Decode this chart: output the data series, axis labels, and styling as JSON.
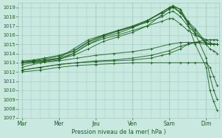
{
  "bg_color": "#c8e8e0",
  "grid_color": "#a0c8c0",
  "line_color": "#1a5c1a",
  "xlabel_text": "Pression niveau de la mer( hPa )",
  "ylim": [
    1007,
    1019.5
  ],
  "yticks": [
    1007,
    1008,
    1009,
    1010,
    1011,
    1012,
    1013,
    1014,
    1015,
    1016,
    1017,
    1018,
    1019
  ],
  "xtick_labels": [
    "Mar",
    "Mer",
    "Jeu",
    "Ven",
    "Sam",
    "Dim"
  ],
  "xlim": [
    -0.1,
    5.35
  ],
  "lines": [
    {
      "pts": [
        [
          0,
          1013.0
        ],
        [
          0.3,
          1013.2
        ],
        [
          0.6,
          1013.3
        ],
        [
          1.0,
          1013.5
        ],
        [
          1.4,
          1014.0
        ],
        [
          1.8,
          1015.0
        ],
        [
          2.2,
          1015.8
        ],
        [
          2.6,
          1016.2
        ],
        [
          3.0,
          1016.8
        ],
        [
          3.4,
          1017.5
        ],
        [
          3.8,
          1018.5
        ],
        [
          4.0,
          1019.0
        ],
        [
          4.1,
          1019.2
        ],
        [
          4.3,
          1018.8
        ],
        [
          4.5,
          1017.2
        ],
        [
          4.7,
          1015.0
        ],
        [
          5.0,
          1012.5
        ],
        [
          5.1,
          1010.0
        ],
        [
          5.2,
          1008.8
        ],
        [
          5.3,
          1007.8
        ]
      ]
    },
    {
      "pts": [
        [
          0,
          1013.0
        ],
        [
          0.3,
          1013.1
        ],
        [
          0.6,
          1013.2
        ],
        [
          1.0,
          1013.4
        ],
        [
          1.4,
          1013.8
        ],
        [
          1.8,
          1014.5
        ],
        [
          2.2,
          1015.3
        ],
        [
          2.6,
          1015.8
        ],
        [
          3.0,
          1016.3
        ],
        [
          3.4,
          1017.0
        ],
        [
          3.8,
          1018.2
        ],
        [
          4.0,
          1018.9
        ],
        [
          4.1,
          1019.1
        ],
        [
          4.3,
          1018.8
        ],
        [
          4.5,
          1017.5
        ],
        [
          4.7,
          1016.2
        ],
        [
          5.0,
          1013.5
        ],
        [
          5.1,
          1011.5
        ],
        [
          5.2,
          1010.0
        ],
        [
          5.3,
          1009.0
        ]
      ]
    },
    {
      "pts": [
        [
          0,
          1013.1
        ],
        [
          0.3,
          1013.2
        ],
        [
          0.6,
          1013.4
        ],
        [
          1.0,
          1013.7
        ],
        [
          1.4,
          1014.2
        ],
        [
          1.8,
          1015.2
        ],
        [
          2.2,
          1015.9
        ],
        [
          2.6,
          1016.4
        ],
        [
          3.0,
          1016.9
        ],
        [
          3.4,
          1017.6
        ],
        [
          3.8,
          1018.5
        ],
        [
          4.0,
          1019.0
        ],
        [
          4.1,
          1019.1
        ],
        [
          4.3,
          1018.5
        ],
        [
          4.5,
          1017.3
        ],
        [
          4.7,
          1016.5
        ],
        [
          5.0,
          1015.0
        ],
        [
          5.1,
          1014.5
        ],
        [
          5.2,
          1014.3
        ],
        [
          5.3,
          1014.0
        ]
      ]
    },
    {
      "pts": [
        [
          0,
          1013.2
        ],
        [
          0.3,
          1013.3
        ],
        [
          0.6,
          1013.5
        ],
        [
          1.0,
          1013.8
        ],
        [
          1.4,
          1014.3
        ],
        [
          1.8,
          1015.3
        ],
        [
          2.2,
          1016.0
        ],
        [
          2.6,
          1016.5
        ],
        [
          3.0,
          1017.0
        ],
        [
          3.4,
          1017.6
        ],
        [
          3.8,
          1018.4
        ],
        [
          4.0,
          1018.8
        ],
        [
          4.1,
          1019.0
        ],
        [
          4.3,
          1018.4
        ],
        [
          4.5,
          1017.5
        ],
        [
          4.7,
          1016.7
        ],
        [
          5.0,
          1015.2
        ],
        [
          5.1,
          1015.0
        ],
        [
          5.2,
          1015.0
        ],
        [
          5.3,
          1015.0
        ]
      ]
    },
    {
      "pts": [
        [
          0,
          1013.0
        ],
        [
          0.3,
          1013.1
        ],
        [
          0.6,
          1013.2
        ],
        [
          1.0,
          1013.5
        ],
        [
          1.4,
          1014.5
        ],
        [
          1.8,
          1015.5
        ],
        [
          2.2,
          1016.0
        ],
        [
          2.6,
          1016.5
        ],
        [
          3.0,
          1016.9
        ],
        [
          3.4,
          1017.4
        ],
        [
          3.8,
          1018.0
        ],
        [
          4.0,
          1018.5
        ],
        [
          4.1,
          1018.6
        ],
        [
          4.3,
          1018.0
        ],
        [
          4.5,
          1017.0
        ],
        [
          4.7,
          1016.2
        ],
        [
          5.0,
          1015.2
        ],
        [
          5.1,
          1015.0
        ],
        [
          5.2,
          1015.0
        ],
        [
          5.3,
          1015.0
        ]
      ]
    },
    {
      "pts": [
        [
          0,
          1012.8
        ],
        [
          0.3,
          1013.0
        ],
        [
          0.6,
          1013.1
        ],
        [
          1.0,
          1013.3
        ],
        [
          1.4,
          1014.0
        ],
        [
          1.8,
          1015.0
        ],
        [
          2.2,
          1015.6
        ],
        [
          2.6,
          1016.0
        ],
        [
          3.0,
          1016.5
        ],
        [
          3.4,
          1017.0
        ],
        [
          3.8,
          1017.5
        ],
        [
          4.0,
          1017.8
        ],
        [
          4.1,
          1017.8
        ],
        [
          4.3,
          1017.2
        ],
        [
          4.5,
          1016.5
        ],
        [
          4.7,
          1016.0
        ],
        [
          5.0,
          1015.5
        ],
        [
          5.1,
          1015.2
        ],
        [
          5.2,
          1015.0
        ],
        [
          5.3,
          1015.0
        ]
      ]
    },
    {
      "pts": [
        [
          0,
          1012.5
        ],
        [
          0.5,
          1013.0
        ],
        [
          1.0,
          1013.2
        ],
        [
          1.5,
          1013.5
        ],
        [
          2.0,
          1013.8
        ],
        [
          2.5,
          1014.0
        ],
        [
          3.0,
          1014.2
        ],
        [
          3.5,
          1014.5
        ],
        [
          4.0,
          1015.0
        ],
        [
          4.3,
          1015.2
        ],
        [
          4.5,
          1015.2
        ],
        [
          4.7,
          1015.2
        ],
        [
          5.0,
          1015.0
        ],
        [
          5.1,
          1015.0
        ],
        [
          5.2,
          1015.0
        ],
        [
          5.3,
          1015.0
        ]
      ]
    },
    {
      "pts": [
        [
          0,
          1012.2
        ],
        [
          0.5,
          1012.5
        ],
        [
          1.0,
          1012.8
        ],
        [
          1.5,
          1013.0
        ],
        [
          2.0,
          1013.2
        ],
        [
          2.5,
          1013.3
        ],
        [
          3.0,
          1013.5
        ],
        [
          3.5,
          1013.8
        ],
        [
          4.0,
          1014.3
        ],
        [
          4.3,
          1014.8
        ],
        [
          4.5,
          1015.0
        ],
        [
          4.7,
          1015.2
        ],
        [
          5.0,
          1015.2
        ],
        [
          5.1,
          1015.0
        ],
        [
          5.2,
          1015.0
        ],
        [
          5.3,
          1015.0
        ]
      ]
    },
    {
      "pts": [
        [
          0,
          1012.2
        ],
        [
          0.5,
          1012.5
        ],
        [
          1.0,
          1012.8
        ],
        [
          1.5,
          1013.0
        ],
        [
          2.0,
          1013.1
        ],
        [
          2.5,
          1013.2
        ],
        [
          3.0,
          1013.3
        ],
        [
          3.5,
          1013.5
        ],
        [
          3.8,
          1013.8
        ],
        [
          4.0,
          1014.0
        ],
        [
          4.3,
          1014.5
        ],
        [
          4.5,
          1015.0
        ],
        [
          4.7,
          1015.2
        ],
        [
          4.8,
          1015.3
        ],
        [
          5.0,
          1015.5
        ],
        [
          5.1,
          1015.5
        ],
        [
          5.2,
          1015.5
        ],
        [
          5.3,
          1015.5
        ]
      ]
    },
    {
      "pts": [
        [
          0,
          1012.0
        ],
        [
          0.5,
          1012.2
        ],
        [
          1.0,
          1012.5
        ],
        [
          1.5,
          1012.7
        ],
        [
          2.0,
          1012.8
        ],
        [
          2.5,
          1012.9
        ],
        [
          3.0,
          1013.0
        ],
        [
          3.5,
          1013.0
        ],
        [
          4.0,
          1013.0
        ],
        [
          4.3,
          1013.0
        ],
        [
          4.5,
          1013.0
        ],
        [
          4.7,
          1013.0
        ],
        [
          5.0,
          1013.0
        ],
        [
          5.1,
          1012.5
        ],
        [
          5.2,
          1011.5
        ],
        [
          5.3,
          1010.5
        ]
      ]
    }
  ]
}
